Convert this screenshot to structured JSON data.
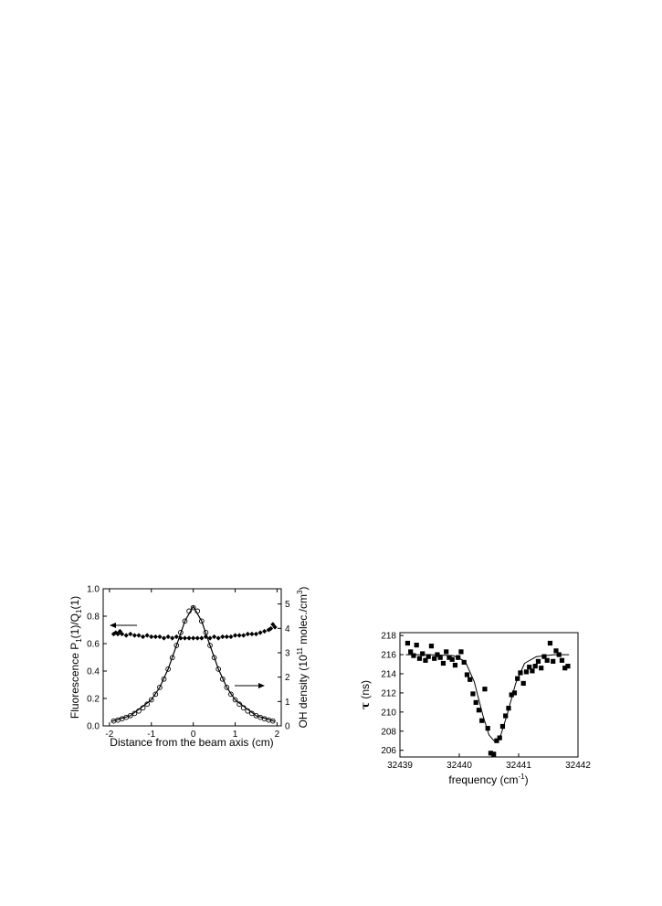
{
  "chart_data": [
    {
      "type": "scatter",
      "xlabel": "Distance from the beam axis (cm)",
      "ylabel_left": "Fluorescence P",
      "ylabel_left_sub": "1",
      "ylabel_left_mid": "(1)/Q",
      "ylabel_left_sub2": "1",
      "ylabel_left_end": "(1)",
      "ylabel_right": "OH density (10",
      "ylabel_right_sup": "11",
      "ylabel_right_mid": " molec./cm",
      "ylabel_right_sup2": "3",
      "ylabel_right_end": ")",
      "xlim": [
        -2.15,
        2.1
      ],
      "ylim_left": [
        0.0,
        1.0
      ],
      "ylim_right": [
        0,
        5.625
      ],
      "xticks": [
        -2,
        -1,
        0,
        1,
        2
      ],
      "yticks_left": [
        0.0,
        0.2,
        0.4,
        0.6,
        0.8,
        1.0
      ],
      "yticks_right": [
        0,
        1,
        2,
        3,
        4,
        5
      ],
      "series": [
        {
          "marker": "diamond-filled",
          "axis": "left",
          "x": [
            -1.9,
            -1.85,
            -1.8,
            -1.75,
            -1.7,
            -1.6,
            -1.5,
            -1.4,
            -1.3,
            -1.2,
            -1.1,
            -1.0,
            -0.9,
            -0.8,
            -0.7,
            -0.6,
            -0.5,
            -0.4,
            -0.3,
            -0.2,
            -0.1,
            0.0,
            0.1,
            0.2,
            0.3,
            0.4,
            0.5,
            0.6,
            0.7,
            0.8,
            0.9,
            1.0,
            1.1,
            1.2,
            1.3,
            1.4,
            1.5,
            1.6,
            1.7,
            1.8,
            1.85,
            1.9,
            1.95
          ],
          "y": [
            0.67,
            0.68,
            0.67,
            0.69,
            0.67,
            0.66,
            0.67,
            0.66,
            0.66,
            0.65,
            0.66,
            0.65,
            0.65,
            0.65,
            0.64,
            0.65,
            0.64,
            0.65,
            0.64,
            0.64,
            0.64,
            0.64,
            0.64,
            0.64,
            0.65,
            0.64,
            0.65,
            0.64,
            0.65,
            0.65,
            0.65,
            0.66,
            0.66,
            0.66,
            0.67,
            0.67,
            0.67,
            0.68,
            0.69,
            0.7,
            0.71,
            0.74,
            0.72
          ]
        },
        {
          "marker": "circle-open",
          "axis": "right",
          "x": [
            -1.9,
            -1.8,
            -1.7,
            -1.6,
            -1.5,
            -1.4,
            -1.3,
            -1.2,
            -1.1,
            -1.0,
            -0.9,
            -0.8,
            -0.7,
            -0.6,
            -0.5,
            -0.4,
            -0.3,
            -0.2,
            -0.1,
            0.0,
            0.1,
            0.2,
            0.3,
            0.4,
            0.5,
            0.6,
            0.7,
            0.8,
            0.9,
            1.0,
            1.1,
            1.2,
            1.3,
            1.4,
            1.5,
            1.6,
            1.7,
            1.8,
            1.9
          ],
          "y": [
            0.2,
            0.24,
            0.29,
            0.35,
            0.42,
            0.51,
            0.61,
            0.74,
            0.89,
            1.07,
            1.3,
            1.58,
            1.92,
            2.33,
            2.8,
            3.3,
            3.83,
            4.3,
            4.71,
            4.85,
            4.71,
            4.3,
            3.83,
            3.3,
            2.8,
            2.33,
            1.92,
            1.58,
            1.3,
            1.07,
            0.89,
            0.74,
            0.61,
            0.51,
            0.42,
            0.35,
            0.29,
            0.24,
            0.2
          ]
        }
      ],
      "fit_line": {
        "axis": "right",
        "x": [
          -1.95,
          -1.5,
          -1.0,
          -0.8,
          -0.6,
          -0.4,
          -0.2,
          0.0,
          0.2,
          0.4,
          0.6,
          0.8,
          1.0,
          1.5,
          1.95
        ],
        "y": [
          0.18,
          0.42,
          1.07,
          1.58,
          2.33,
          3.3,
          4.3,
          4.9,
          4.3,
          3.3,
          2.33,
          1.58,
          1.07,
          0.42,
          0.18
        ]
      }
    },
    {
      "type": "scatter",
      "xlabel": "frequency (cm",
      "xlabel_sup": "-1",
      "xlabel_end": ")",
      "ylabel_sym": "τ",
      "ylabel": " (ns)",
      "xlim": [
        32439,
        32442
      ],
      "ylim": [
        205.3,
        218.3
      ],
      "xticks": [
        32439,
        32440,
        32441,
        32442
      ],
      "yticks": [
        206,
        208,
        210,
        212,
        214,
        216,
        218
      ],
      "series": [
        {
          "marker": "square-filled",
          "x": [
            32439.13,
            32439.18,
            32439.23,
            32439.28,
            32439.33,
            32439.38,
            32439.43,
            32439.48,
            32439.53,
            32439.58,
            32439.63,
            32439.68,
            32439.73,
            32439.78,
            32439.83,
            32439.88,
            32439.93,
            32439.98,
            32440.03,
            32440.08,
            32440.13,
            32440.18,
            32440.23,
            32440.28,
            32440.33,
            32440.38,
            32440.43,
            32440.48,
            32440.53,
            32440.58,
            32440.63,
            32440.68,
            32440.73,
            32440.78,
            32440.83,
            32440.88,
            32440.93,
            32440.98,
            32441.03,
            32441.08,
            32441.13,
            32441.18,
            32441.23,
            32441.28,
            32441.33,
            32441.38,
            32441.43,
            32441.48,
            32441.53,
            32441.58,
            32441.63,
            32441.68,
            32441.73,
            32441.78,
            32441.83
          ],
          "y": [
            217.2,
            216.3,
            215.9,
            217.0,
            215.6,
            216.1,
            215.4,
            215.8,
            216.9,
            215.6,
            216.0,
            215.7,
            215.1,
            216.3,
            215.7,
            215.5,
            214.9,
            215.7,
            216.3,
            215.2,
            213.9,
            213.4,
            211.9,
            211.0,
            210.2,
            209.1,
            212.4,
            208.3,
            205.7,
            205.6,
            207.0,
            207.3,
            208.5,
            209.6,
            210.4,
            211.8,
            212.0,
            213.5,
            214.1,
            213.0,
            214.2,
            214.7,
            214.3,
            214.8,
            215.3,
            214.6,
            215.8,
            215.4,
            217.2,
            215.3,
            216.4,
            216.0,
            215.4,
            214.6,
            214.8
          ]
        }
      ],
      "fit_line": {
        "x": [
          32439.1,
          32439.5,
          32439.9,
          32440.1,
          32440.25,
          32440.4,
          32440.5,
          32440.6,
          32440.7,
          32440.8,
          32440.95,
          32441.1,
          32441.3,
          32441.6,
          32441.85
        ],
        "y": [
          216.0,
          216.0,
          215.9,
          215.3,
          213.2,
          209.6,
          207.6,
          206.9,
          207.6,
          209.6,
          213.0,
          215.1,
          215.8,
          216.0,
          216.0
        ]
      }
    }
  ]
}
